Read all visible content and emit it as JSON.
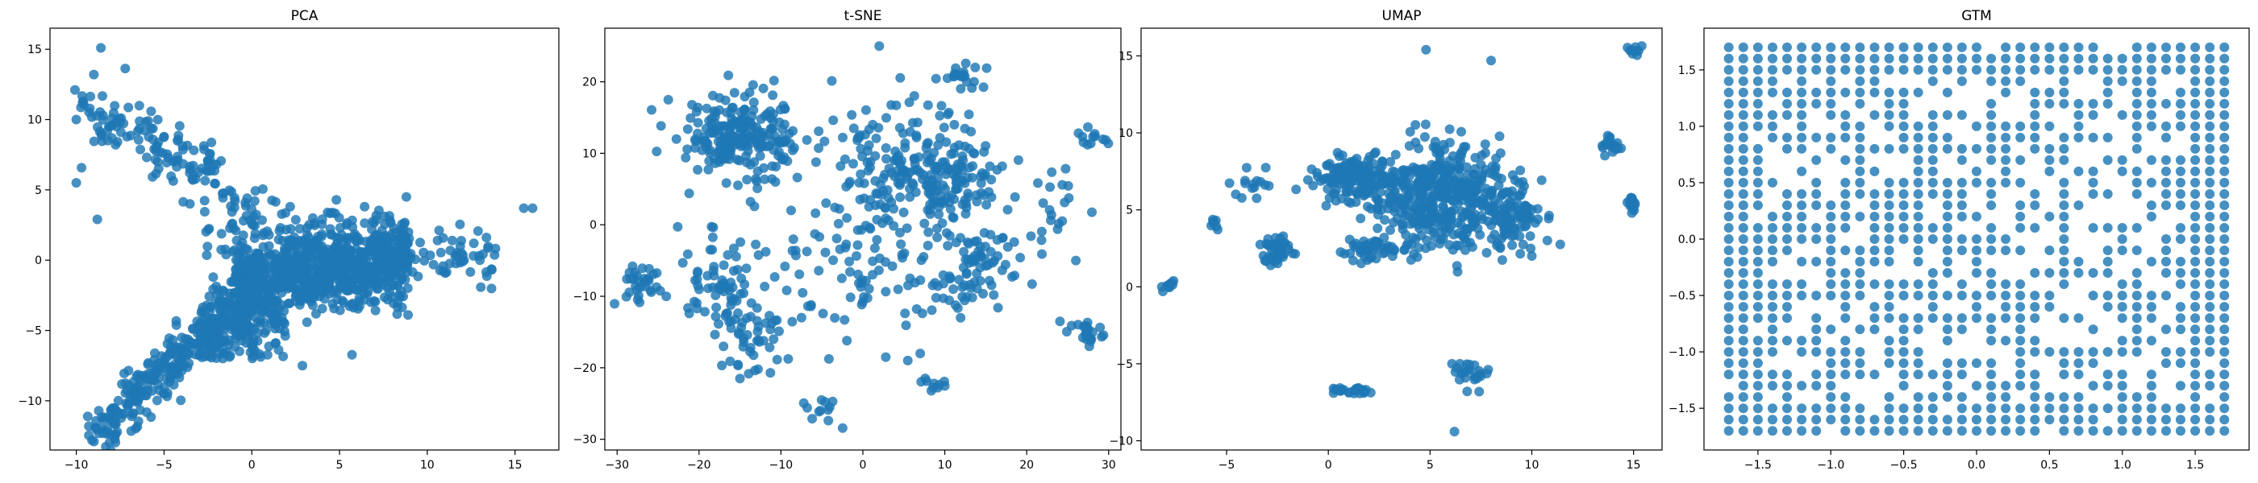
{
  "chart_data": [
    {
      "type": "scatter",
      "title": "PCA",
      "xlabel": "",
      "ylabel": "",
      "xlim": [
        -11.5,
        17.5
      ],
      "ylim": [
        -13.5,
        16.5
      ],
      "xticks": [
        -10,
        -5,
        0,
        5,
        10,
        15
      ],
      "yticks": [
        -10,
        -5,
        0,
        5,
        10,
        15
      ],
      "grid": false,
      "color": "#1f77b4",
      "clusters": [
        {
          "cx": [
            -8,
            4
          ],
          "cy": [
            3,
            13
          ],
          "count": 220,
          "shape": "arm-upper"
        },
        {
          "cx": [
            -9,
            0
          ],
          "cy": [
            -12.5,
            -1
          ],
          "count": 320,
          "shape": "arm-lower"
        },
        {
          "cx": [
            -2,
            9
          ],
          "cy": [
            -4,
            5.5
          ],
          "count": 900,
          "shape": "core"
        },
        {
          "cx": [
            8,
            14
          ],
          "cy": [
            -1.5,
            2.5
          ],
          "count": 60,
          "shape": "tail"
        }
      ],
      "points": [
        [
          16,
          3.7
        ],
        [
          15.5,
          3.7
        ],
        [
          13,
          0
        ],
        [
          -8.6,
          15.1
        ],
        [
          -9,
          13.2
        ],
        [
          -10,
          5.5
        ],
        [
          -8.8,
          2.9
        ],
        [
          -10,
          10
        ]
      ]
    },
    {
      "type": "scatter",
      "title": "t-SNE",
      "xlabel": "",
      "ylabel": "",
      "xlim": [
        -31.5,
        31.5
      ],
      "ylim": [
        -31.5,
        27.5
      ],
      "xticks": [
        -30,
        -20,
        -10,
        0,
        10,
        20,
        30
      ],
      "yticks": [
        -30,
        -20,
        -10,
        0,
        10,
        20
      ],
      "grid": false,
      "color": "#1f77b4",
      "clusters": [
        {
          "cx": -15,
          "cy": 13,
          "sx": 3.5,
          "sy": 3,
          "count": 220
        },
        {
          "cx": -27,
          "cy": -8,
          "sx": 1.5,
          "sy": 1.2,
          "count": 30
        },
        {
          "cx": -17,
          "cy": -9,
          "sx": 2.5,
          "sy": 3,
          "count": 70
        },
        {
          "cx": -13,
          "cy": -16,
          "sx": 2.5,
          "sy": 3,
          "count": 40
        },
        {
          "cx": 5,
          "cy": 8,
          "sx": 5,
          "sy": 5,
          "count": 150
        },
        {
          "cx": 11,
          "cy": 6,
          "sx": 3,
          "sy": 3,
          "count": 100
        },
        {
          "cx": 12,
          "cy": 21,
          "sx": 1.5,
          "sy": 1,
          "count": 20
        },
        {
          "cx": 15,
          "cy": -4,
          "sx": 2,
          "sy": 2,
          "count": 40
        },
        {
          "cx": 12,
          "cy": -9,
          "sx": 2,
          "sy": 1.5,
          "count": 30
        },
        {
          "cx": 27,
          "cy": -15,
          "sx": 1.2,
          "sy": 1,
          "count": 25
        },
        {
          "cx": 28,
          "cy": 12,
          "sx": 1,
          "sy": 0.8,
          "count": 12
        },
        {
          "cx": 9,
          "cy": -22.5,
          "sx": 1,
          "sy": 0.5,
          "count": 10
        },
        {
          "cx": -5,
          "cy": -26,
          "sx": 1.2,
          "sy": 1.5,
          "count": 12
        },
        {
          "cx": -5,
          "cy": 3,
          "sx": 8,
          "sy": 8,
          "count": 60
        },
        {
          "cx": 4,
          "cy": -8,
          "sx": 6,
          "sy": 5,
          "count": 60
        },
        {
          "cx": 24,
          "cy": 0,
          "sx": 2,
          "sy": 4,
          "count": 20
        }
      ],
      "points": [
        [
          2,
          25
        ],
        [
          -15,
          -21.5
        ],
        [
          7,
          -18
        ],
        [
          26,
          -5
        ],
        [
          -24,
          -10
        ]
      ]
    },
    {
      "type": "scatter",
      "title": "UMAP",
      "xlabel": "",
      "ylabel": "",
      "xlim": [
        -9.2,
        16.4
      ],
      "ylim": [
        -10.6,
        16.8
      ],
      "xticks": [
        -5,
        0,
        5,
        10,
        15
      ],
      "yticks": [
        -10,
        -5,
        0,
        5,
        10,
        15
      ],
      "grid": false,
      "color": "#1f77b4",
      "clusters": [
        {
          "cx": 5.5,
          "cy": 6,
          "sx": 1.8,
          "sy": 1.8,
          "count": 450
        },
        {
          "cx": 1.2,
          "cy": 7,
          "sx": 1,
          "sy": 0.8,
          "count": 150
        },
        {
          "cx": 2,
          "cy": 2.5,
          "sx": 0.6,
          "sy": 0.4,
          "count": 50
        },
        {
          "cx": -2.5,
          "cy": 2.3,
          "sx": 0.4,
          "sy": 0.5,
          "count": 40
        },
        {
          "cx": 8.5,
          "cy": 4.5,
          "sx": 1.2,
          "sy": 1.2,
          "count": 100
        },
        {
          "cx": -3.5,
          "cy": 6.5,
          "sx": 0.6,
          "sy": 0.6,
          "count": 15
        },
        {
          "cx": 1,
          "cy": -6.7,
          "sx": 0.7,
          "sy": 0.15,
          "count": 25
        },
        {
          "cx": 7,
          "cy": -5.5,
          "sx": 0.5,
          "sy": 0.5,
          "count": 25
        },
        {
          "cx": 13.8,
          "cy": 9.3,
          "sx": 0.25,
          "sy": 0.4,
          "count": 20
        },
        {
          "cx": 14.9,
          "cy": 5.2,
          "sx": 0.15,
          "sy": 0.4,
          "count": 15
        },
        {
          "cx": 15,
          "cy": 15.4,
          "sx": 0.15,
          "sy": 0.2,
          "count": 10
        },
        {
          "cx": -7.8,
          "cy": 0,
          "sx": 0.2,
          "sy": 0.2,
          "count": 10
        },
        {
          "cx": -5.7,
          "cy": 4,
          "sx": 0.2,
          "sy": 0.2,
          "count": 8
        }
      ],
      "points": [
        [
          4.8,
          15.4
        ],
        [
          6.2,
          -9.4
        ],
        [
          8,
          14.7
        ],
        [
          10,
          2
        ]
      ]
    },
    {
      "type": "scatter",
      "title": "GTM",
      "xlabel": "",
      "ylabel": "",
      "xlim": [
        -1.87,
        1.87
      ],
      "ylim": [
        -1.87,
        1.87
      ],
      "xticks": [
        -1.5,
        -1.0,
        -0.5,
        0.0,
        0.5,
        1.0,
        1.5
      ],
      "yticks": [
        -1.5,
        -1.0,
        -0.5,
        0.0,
        0.5,
        1.0,
        1.5
      ],
      "tick_labels_x": [
        "−1.5",
        "−1.0",
        "−0.5",
        "0.0",
        "0.5",
        "1.0",
        "1.5"
      ],
      "tick_labels_y": [
        "−1.5",
        "−1.0",
        "−0.5",
        "0.0",
        "0.5",
        "1.0",
        "1.5"
      ],
      "grid": false,
      "color": "#1f77b4",
      "grid_points": {
        "min": -1.7,
        "max": 1.7,
        "n": 35
      },
      "count": 900
    }
  ]
}
